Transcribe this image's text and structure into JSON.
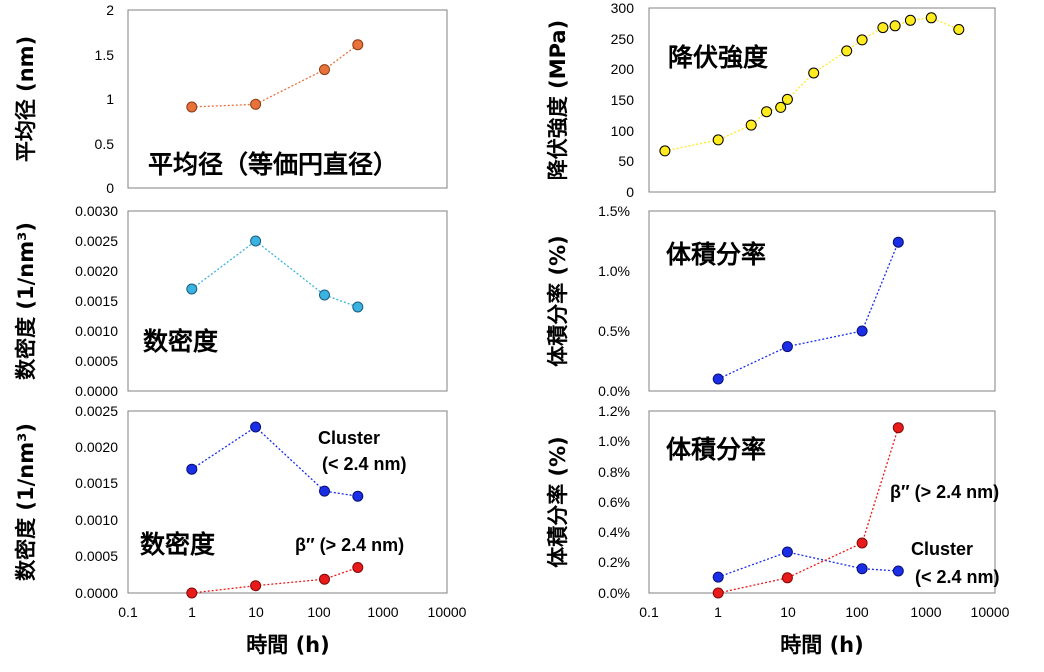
{
  "chart_data": [
    {
      "id": "size",
      "type": "line",
      "ylabel": "平均径 (nm)",
      "ylim": [
        0,
        2
      ],
      "yticks": [
        "0",
        "0.5",
        "1",
        "1.5",
        "2"
      ],
      "xscale": "log",
      "xlim": [
        0.1,
        10000
      ],
      "annotations": [
        "平均径（等価円直径）"
      ],
      "series": [
        {
          "color": "#E8733A",
          "stroke": "#8B3A12",
          "x": [
            1,
            10,
            120,
            400
          ],
          "y": [
            0.91,
            0.94,
            1.33,
            1.61
          ]
        }
      ]
    },
    {
      "id": "strength",
      "type": "line",
      "ylabel": "降伏強度 (MPa)",
      "ylim": [
        0,
        300
      ],
      "yticks": [
        "0",
        "50",
        "100",
        "150",
        "200",
        "250",
        "300"
      ],
      "xscale": "log",
      "xlim": [
        0.1,
        10000
      ],
      "annotations": [
        "降伏強度"
      ],
      "series": [
        {
          "color": "#FFEB1E",
          "stroke": "#000000",
          "x": [
            0.17,
            1,
            3,
            5,
            8,
            10,
            24,
            72,
            120,
            240,
            360,
            600,
            1200,
            3000
          ],
          "y": [
            67,
            85,
            109,
            131,
            138,
            151,
            194,
            230,
            248,
            268,
            271,
            280,
            284,
            265
          ]
        }
      ]
    },
    {
      "id": "density",
      "type": "line",
      "ylabel": "数密度 (1/nm³)",
      "ylim": [
        0,
        0.003
      ],
      "yticks": [
        "0.0000",
        "0.0005",
        "0.0010",
        "0.0015",
        "0.0020",
        "0.0025",
        "0.0030"
      ],
      "xscale": "log",
      "xlim": [
        0.1,
        10000
      ],
      "annotations": [
        "数密度"
      ],
      "series": [
        {
          "color": "#3BB3E0",
          "stroke": "#1A5E80",
          "x": [
            1,
            10,
            120,
            400
          ],
          "y": [
            0.0017,
            0.0025,
            0.0016,
            0.0014
          ]
        }
      ]
    },
    {
      "id": "volfrac",
      "type": "line",
      "ylabel": "体積分率 (%)",
      "ylim": [
        0,
        1.5
      ],
      "yticks": [
        "0.0%",
        "0.5%",
        "1.0%",
        "1.5%"
      ],
      "xscale": "log",
      "xlim": [
        0.1,
        10000
      ],
      "annotations": [
        "体積分率"
      ],
      "series": [
        {
          "color": "#1A2EE8",
          "stroke": "#0A1070",
          "x": [
            1,
            10,
            120,
            400
          ],
          "y": [
            0.1,
            0.37,
            0.5,
            1.24
          ]
        }
      ]
    },
    {
      "id": "density2",
      "type": "line",
      "ylabel": "数密度 (1/nm³)",
      "ylim": [
        0,
        0.0025
      ],
      "yticks": [
        "0.0000",
        "0.0005",
        "0.0010",
        "0.0015",
        "0.0020",
        "0.0025"
      ],
      "xscale": "log",
      "xlim": [
        0.1,
        10000
      ],
      "xticks": [
        "0.1",
        "1",
        "10",
        "100",
        "1000",
        "10000"
      ],
      "xlabel": "時間 (h)",
      "annotations": [
        "数密度",
        "Cluster",
        "(< 2.4 nm)",
        "β″ (> 2.4 nm)"
      ],
      "series": [
        {
          "name": "Cluster (< 2.4 nm)",
          "color": "#1A2EE8",
          "stroke": "#0A1070",
          "x": [
            1,
            10,
            120,
            400
          ],
          "y": [
            0.0017,
            0.00228,
            0.0014,
            0.00133
          ]
        },
        {
          "name": "β″ (> 2.4 nm)",
          "color": "#E81A1A",
          "stroke": "#800A0A",
          "x": [
            1,
            10,
            120,
            400
          ],
          "y": [
            0.0,
            0.0001,
            0.00019,
            0.00035
          ]
        }
      ]
    },
    {
      "id": "volfrac2",
      "type": "line",
      "ylabel": "体積分率 (%)",
      "ylim": [
        0,
        1.2
      ],
      "yticks": [
        "0.0%",
        "0.2%",
        "0.4%",
        "0.6%",
        "0.8%",
        "1.0%",
        "1.2%"
      ],
      "xscale": "log",
      "xlim": [
        0.1,
        10000
      ],
      "xticks": [
        "0.1",
        "1",
        "10",
        "100",
        "1000",
        "10000"
      ],
      "xlabel": "時間 (h)",
      "annotations": [
        "体積分率",
        "β″ (> 2.4 nm)",
        "Cluster",
        "(< 2.4 nm)"
      ],
      "series": [
        {
          "name": "Cluster (< 2.4 nm)",
          "color": "#1A2EE8",
          "stroke": "#0A1070",
          "x": [
            1,
            10,
            120,
            400
          ],
          "y": [
            0.105,
            0.27,
            0.16,
            0.145
          ]
        },
        {
          "name": "β″ (> 2.4 nm)",
          "color": "#E81A1A",
          "stroke": "#800A0A",
          "x": [
            1,
            10,
            120,
            400
          ],
          "y": [
            0.0,
            0.1,
            0.33,
            1.09
          ]
        }
      ]
    }
  ]
}
